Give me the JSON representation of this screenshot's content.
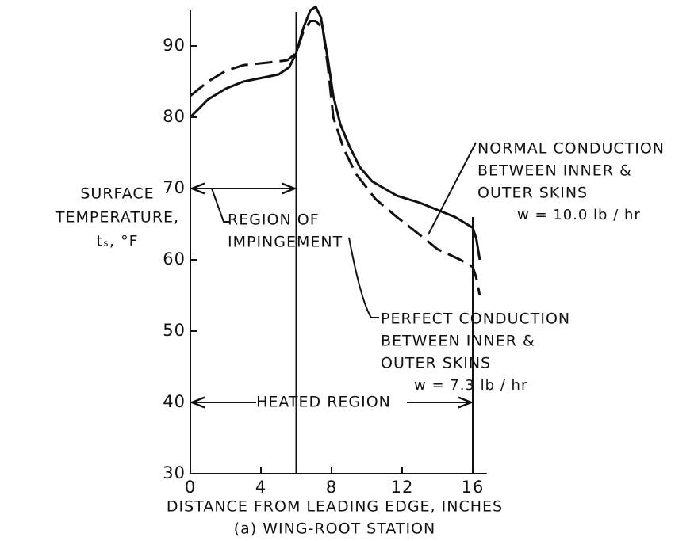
{
  "chart_data": {
    "type": "line",
    "x_label": "DISTANCE FROM LEADING EDGE, INCHES",
    "subtitle": "(a) WING-ROOT STATION",
    "y_label": [
      "SURFACE",
      "TEMPERATURE,",
      "tₛ, °F"
    ],
    "xlim": [
      0,
      16.8
    ],
    "xticks": [
      0,
      4,
      8,
      12,
      16
    ],
    "ylim": [
      30,
      95
    ],
    "yticks": [
      30,
      40,
      50,
      60,
      70,
      80,
      90
    ],
    "series": [
      {
        "color": "#111111",
        "dash": "solid",
        "x": [
          0,
          1,
          2,
          3,
          4,
          5,
          5.6,
          6,
          6.4,
          6.8,
          7.1,
          7.4,
          7.8,
          8.1,
          8.5,
          9,
          9.6,
          10.3,
          11,
          11.7,
          13,
          14,
          15,
          16,
          16.2,
          16.4
        ],
        "values": [
          80,
          82.5,
          84,
          85,
          85.5,
          86,
          87,
          89,
          92.5,
          95,
          95.5,
          94,
          88,
          83,
          79,
          76,
          73,
          71,
          70,
          69,
          68,
          67,
          66,
          64.5,
          63,
          60
        ]
      },
      {
        "color": "#111111",
        "dash": "dashed",
        "x": [
          0,
          1,
          2,
          3,
          4.5,
          5.5,
          6,
          6.4,
          6.8,
          7.1,
          7.5,
          7.8,
          8.1,
          8.7,
          9.4,
          10.5,
          11.7,
          13,
          14,
          15.3,
          16,
          16.2,
          16.4
        ],
        "values": [
          83,
          85,
          86.5,
          87.3,
          87.7,
          88,
          89,
          92,
          93.5,
          93.5,
          92.5,
          87,
          80,
          75.5,
          72,
          68.5,
          66,
          63.5,
          61.5,
          60,
          59,
          57.5,
          55
        ]
      }
    ],
    "annotations": [
      {
        "lines": [
          "NORMAL CONDUCTION",
          "BETWEEN INNER &",
          "OUTER SKINS"
        ],
        "note": "w = 10.0 lb / hr"
      },
      {
        "lines": [
          "PERFECT CONDUCTION",
          "BETWEEN INNER &",
          "OUTER SKINS"
        ],
        "note": "w = 7.3 lb / hr"
      }
    ],
    "regions": [
      {
        "label": [
          "REGION OF",
          "IMPINGEMENT"
        ],
        "start": 0,
        "end": 6,
        "y": 70
      },
      {
        "label": [
          "HEATED REGION"
        ],
        "start": 0,
        "end": 16,
        "y": 40
      }
    ]
  }
}
